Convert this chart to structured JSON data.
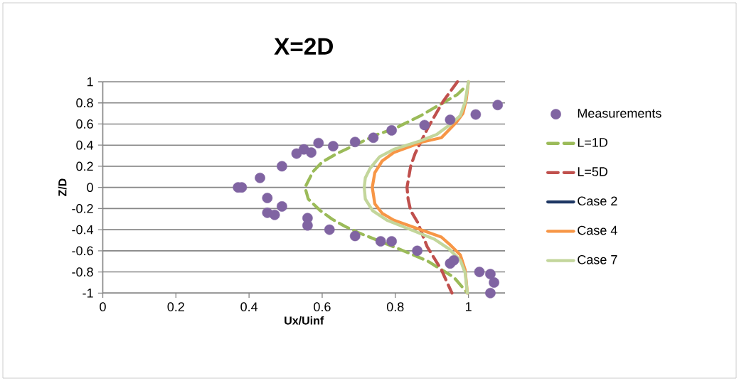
{
  "chart_data": {
    "type": "line",
    "title": "X=2D",
    "xlabel": "Ux/Uinf",
    "ylabel": "Z/D",
    "xlim": [
      0,
      1.1
    ],
    "ylim": [
      -1,
      1
    ],
    "xticks": [
      0,
      0.2,
      0.4,
      0.6,
      0.8,
      1
    ],
    "yticks": [
      1,
      0.8,
      0.6,
      0.4,
      0.2,
      0,
      -0.2,
      -0.4,
      -0.6,
      -0.8,
      -1
    ],
    "grid": "y",
    "legend": "right",
    "series": [
      {
        "name": "Measurements",
        "type": "scatter",
        "color": "#8064a2",
        "x": [
          1.08,
          1.02,
          0.95,
          0.88,
          0.79,
          0.74,
          0.69,
          0.63,
          0.59,
          0.57,
          0.55,
          0.53,
          0.49,
          0.43,
          0.38,
          0.37,
          0.45,
          0.49,
          0.45,
          0.47,
          0.56,
          0.56,
          0.62,
          0.69,
          0.76,
          0.79,
          0.86,
          0.95,
          0.96,
          1.03,
          1.06,
          1.07,
          1.06
        ],
        "values": [
          0.78,
          0.69,
          0.64,
          0.59,
          0.54,
          0.47,
          0.43,
          0.39,
          0.42,
          0.33,
          0.36,
          0.32,
          0.2,
          0.09,
          0,
          0,
          -0.1,
          -0.18,
          -0.24,
          -0.26,
          -0.29,
          -0.36,
          -0.4,
          -0.46,
          -0.51,
          -0.51,
          -0.6,
          -0.72,
          -0.69,
          -0.8,
          -0.82,
          -0.9,
          -1
        ]
      },
      {
        "name": "L=1D",
        "line_style": "dashed",
        "color": "#9bbb59",
        "x": [
          0.985,
          0.97,
          0.87,
          0.8,
          0.75,
          0.64,
          0.6,
          0.575,
          0.553,
          0.562,
          0.595,
          0.627,
          0.663,
          0.7,
          0.78,
          0.85,
          0.89,
          0.913,
          0.96,
          0.995
        ],
        "values": [
          0.93,
          0.88,
          0.68,
          0.56,
          0.5,
          0.32,
          0.24,
          0.15,
          0,
          -0.11,
          -0.22,
          -0.3,
          -0.37,
          -0.43,
          -0.54,
          -0.64,
          -0.7,
          -0.75,
          -0.85,
          -0.99
        ]
      },
      {
        "name": "L=5D",
        "line_style": "dashed",
        "color": "#c0504d",
        "x": [
          0.97,
          0.93,
          0.89,
          0.854,
          0.842,
          0.832,
          0.835,
          0.842,
          0.861,
          0.887,
          0.926,
          0.955
        ],
        "values": [
          1,
          0.81,
          0.57,
          0.32,
          0.2,
          0,
          -0.11,
          -0.22,
          -0.33,
          -0.56,
          -0.78,
          -1
        ]
      },
      {
        "name": "Case 2",
        "line_style": "solid",
        "color": "#1f3864"
      },
      {
        "name": "Case 4",
        "line_style": "solid",
        "color": "#f79646",
        "x": [
          1.0,
          0.994,
          0.985,
          0.968,
          0.926,
          0.874,
          0.796,
          0.764,
          0.744,
          0.737,
          0.744,
          0.764,
          0.796,
          0.861,
          0.926,
          0.952,
          0.978,
          0.991,
          0.997
        ],
        "values": [
          1,
          0.83,
          0.7,
          0.62,
          0.47,
          0.43,
          0.33,
          0.25,
          0.14,
          0,
          -0.155,
          -0.245,
          -0.31,
          -0.39,
          -0.47,
          -0.55,
          -0.64,
          -0.78,
          -1
        ]
      },
      {
        "name": "Case 7",
        "line_style": "solid",
        "color": "#c3d69b",
        "x": [
          1.0,
          0.991,
          0.978,
          0.952,
          0.913,
          0.868,
          0.796,
          0.757,
          0.731,
          0.718,
          0.715,
          0.718,
          0.738,
          0.777,
          0.842,
          0.907,
          0.946,
          0.978,
          0.991,
          0.997
        ],
        "values": [
          1,
          0.81,
          0.68,
          0.6,
          0.5,
          0.44,
          0.36,
          0.29,
          0.18,
          0.09,
          0,
          -0.11,
          -0.22,
          -0.31,
          -0.4,
          -0.49,
          -0.58,
          -0.69,
          -0.81,
          -1
        ]
      }
    ]
  }
}
